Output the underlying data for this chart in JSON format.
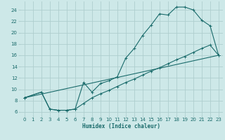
{
  "xlabel": "Humidex (Indice chaleur)",
  "bg_color": "#cde8e8",
  "grid_color": "#aecece",
  "line_color": "#1a6b6b",
  "xlim": [
    -0.5,
    23.5
  ],
  "ylim": [
    5.5,
    25.5
  ],
  "xticks": [
    0,
    1,
    2,
    3,
    4,
    5,
    6,
    7,
    8,
    9,
    10,
    11,
    12,
    13,
    14,
    15,
    16,
    17,
    18,
    19,
    20,
    21,
    22,
    23
  ],
  "yticks": [
    6,
    8,
    10,
    12,
    14,
    16,
    18,
    20,
    22,
    24
  ],
  "line1_x": [
    0,
    2,
    3,
    4,
    5,
    6,
    7,
    8,
    9,
    10,
    11,
    12,
    13,
    14,
    15,
    16,
    17,
    18,
    19,
    20,
    21,
    22,
    23
  ],
  "line1_y": [
    8.5,
    9.5,
    6.5,
    6.3,
    6.3,
    6.5,
    11.2,
    9.5,
    11.0,
    11.5,
    12.2,
    15.5,
    17.2,
    19.5,
    21.3,
    23.3,
    23.1,
    24.5,
    24.5,
    24.0,
    22.2,
    21.2,
    16.0
  ],
  "line2_x": [
    0,
    2,
    3,
    4,
    5,
    6,
    7,
    8,
    9,
    10,
    11,
    12,
    13,
    14,
    15,
    16,
    17,
    18,
    19,
    20,
    21,
    22,
    23
  ],
  "line2_y": [
    8.5,
    9.5,
    6.5,
    6.3,
    6.3,
    6.5,
    7.5,
    8.5,
    9.2,
    9.8,
    10.5,
    11.2,
    11.8,
    12.5,
    13.2,
    13.8,
    14.5,
    15.2,
    15.8,
    16.5,
    17.2,
    17.8,
    16.0
  ],
  "line3_x": [
    0,
    23
  ],
  "line3_y": [
    8.5,
    16.0
  ]
}
